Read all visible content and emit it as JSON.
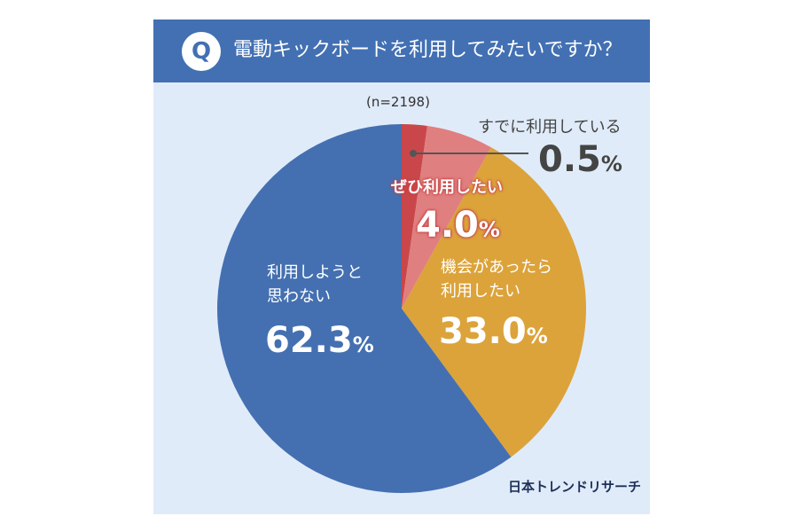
{
  "header": {
    "badge": "Q",
    "title": "電動キックボードを利用してみたいですか？"
  },
  "sample": "(n=2198)",
  "colors": {
    "header": "#4270b3",
    "background": "#e0ebf9"
  },
  "chart_data": {
    "type": "pie",
    "title": "電動キックボードを利用してみたいですか？",
    "slices": [
      {
        "label": "すでに利用している",
        "value": 0.5,
        "display": "0.5",
        "color": "#c9474a"
      },
      {
        "label": "ぜひ利用したい",
        "value": 4.0,
        "display": "4.0",
        "color": "#e07f7f"
      },
      {
        "label": "機会があったら利用したい",
        "label_lines": [
          "機会があったら",
          "利用したい"
        ],
        "value": 33.0,
        "display": "33.0",
        "color": "#dca33b"
      },
      {
        "label": "利用しようと思わない",
        "label_lines": [
          "利用しようと",
          "思わない"
        ],
        "value": 62.3,
        "display": "62.3",
        "color": "#4470b1"
      }
    ],
    "unit": "%",
    "start": "12 o'clock, clockwise"
  },
  "source": "日本トレンドリサーチ"
}
